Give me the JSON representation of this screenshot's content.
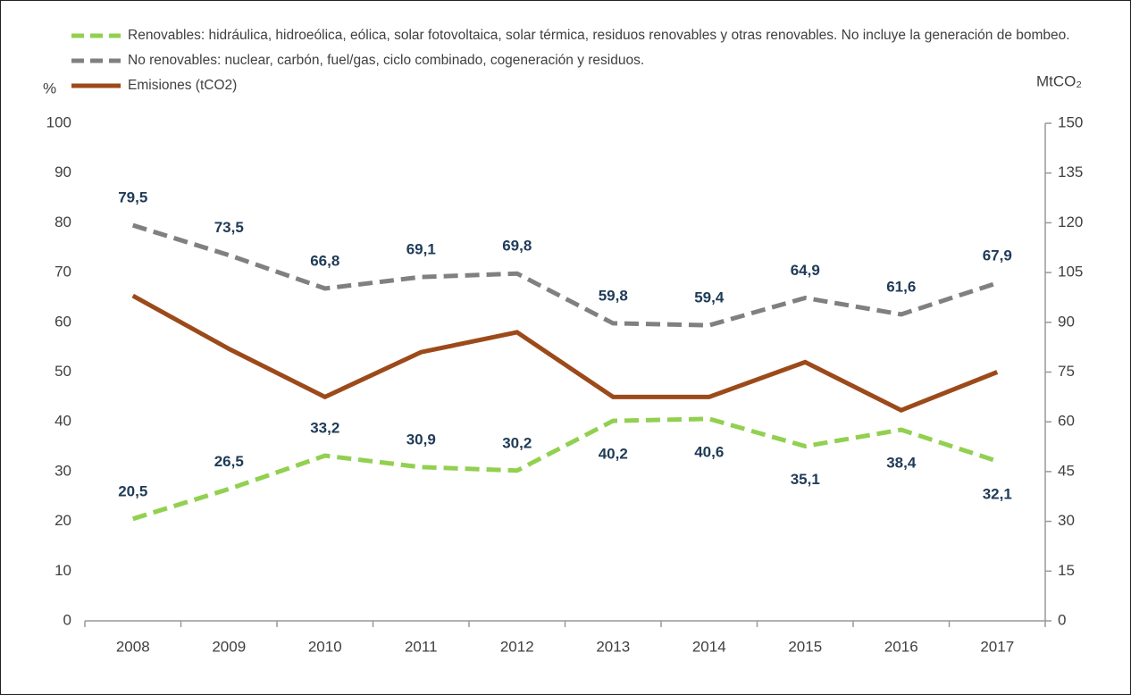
{
  "chart_data": {
    "type": "line",
    "ylabel": "%",
    "y2label": "MtCO₂",
    "categories": [
      "2008",
      "2009",
      "2010",
      "2011",
      "2012",
      "2013",
      "2014",
      "2015",
      "2016",
      "2017"
    ],
    "series": [
      {
        "name": "Renovables: hidráulica, hidroeólica, eólica, solar fotovoltaica, solar térmica, residuos renovables y otras renovables. No incluye la generación de bombeo.",
        "color": "#92d050",
        "dashed": true,
        "values": [
          20.5,
          26.5,
          33.2,
          30.9,
          30.2,
          40.2,
          40.6,
          35.1,
          38.4,
          32.1
        ],
        "value_labels": [
          "20,5",
          "26,5",
          "33,2",
          "30,9",
          "30,2",
          "40,2",
          "40,6",
          "35,1",
          "38,4",
          "32,1"
        ]
      },
      {
        "name": "No renovables: nuclear, carbón, fuel/gas, ciclo combinado, cogeneración y residuos.",
        "color": "#808080",
        "dashed": true,
        "values": [
          79.5,
          73.5,
          66.8,
          69.1,
          69.8,
          59.8,
          59.4,
          64.9,
          61.6,
          67.9
        ],
        "value_labels": [
          "79,5",
          "73,5",
          "66,8",
          "69,1",
          "69,8",
          "59,8",
          "59,4",
          "64,9",
          "61,6",
          "67,9"
        ]
      },
      {
        "name": "Emisiones (tCO2)",
        "color": "#9c4a1a",
        "dashed": false,
        "axis": "y2",
        "values": [
          98,
          82,
          67.5,
          81,
          87,
          67.5,
          67.5,
          78,
          63.5,
          75
        ]
      }
    ],
    "ylim": [
      0,
      100
    ],
    "yticks": [
      0,
      10,
      20,
      30,
      40,
      50,
      60,
      70,
      80,
      90,
      100
    ],
    "y2lim": [
      0,
      150
    ],
    "y2ticks": [
      0,
      15,
      30,
      45,
      60,
      75,
      90,
      105,
      120,
      135,
      150
    ],
    "legend": "top-left",
    "grid": false
  }
}
